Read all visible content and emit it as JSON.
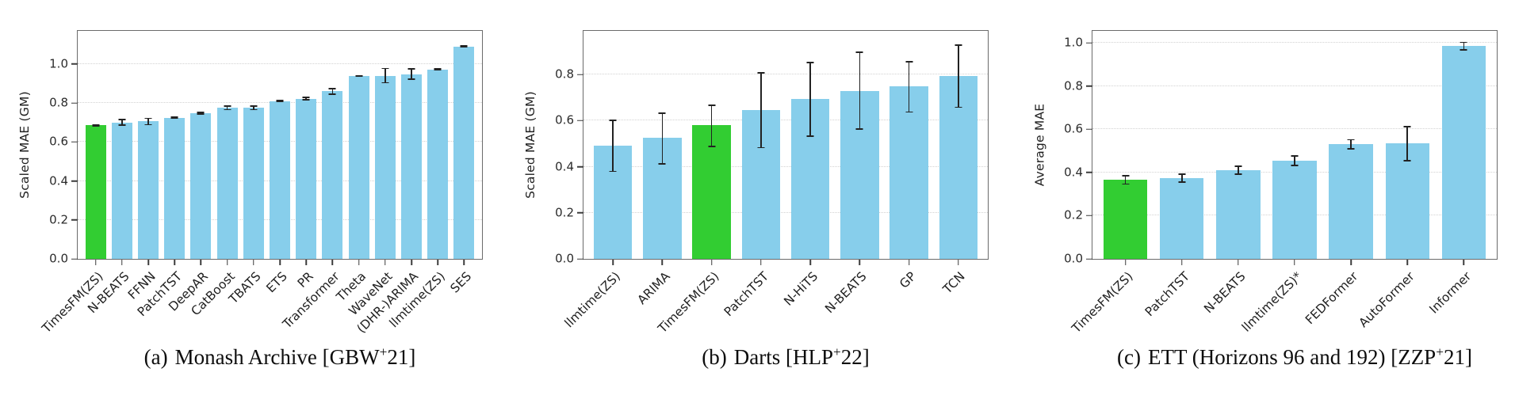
{
  "figure": {
    "background": "#ffffff",
    "bar_color": "#87CEEB",
    "highlight_color": "#32CD32",
    "error_color": "#222222",
    "grid_color": "#d2d2d2",
    "spine_color": "#6b6b6b"
  },
  "chart_data": [
    {
      "type": "bar",
      "title": "Monash Archive",
      "ylabel": "Scaled MAE (GM)",
      "xlabel": "",
      "yticks": [
        0.0,
        0.2,
        0.4,
        0.6,
        0.8,
        1.0
      ],
      "ylim": [
        0,
        1.17
      ],
      "grid": true,
      "legend_position": "none",
      "highlight_index": 0,
      "categories": [
        "TimesFM(ZS)",
        "N-BEATS",
        "FFNN",
        "PatchTST",
        "DeepAR",
        "CatBoost",
        "TBATS",
        "ETS",
        "PR",
        "Transformer",
        "Theta",
        "WaveNet",
        "(DHR-)ARIMA",
        "llmtime(ZS)",
        "SES"
      ],
      "values": [
        0.685,
        0.7,
        0.705,
        0.725,
        0.748,
        0.775,
        0.775,
        0.81,
        0.822,
        0.86,
        0.94,
        0.94,
        0.945,
        0.972,
        1.09
      ],
      "err_minus": [
        0.005,
        0.018,
        0.02,
        0.007,
        0.008,
        0.013,
        0.013,
        0.005,
        0.01,
        0.018,
        0.004,
        0.04,
        0.026,
        0.006,
        0.007
      ],
      "err_plus": [
        0.005,
        0.018,
        0.02,
        0.007,
        0.008,
        0.013,
        0.013,
        0.005,
        0.01,
        0.018,
        0.004,
        0.04,
        0.033,
        0.006,
        0.007
      ],
      "caption": {
        "tag": "(a)",
        "pre": "Monash Archive [GBW",
        "sup": "+",
        "post": "21]"
      }
    },
    {
      "type": "bar",
      "title": "Darts",
      "ylabel": "Scaled MAE (GM)",
      "xlabel": "",
      "yticks": [
        0.0,
        0.2,
        0.4,
        0.6,
        0.8
      ],
      "ylim": [
        0,
        0.99
      ],
      "grid": true,
      "legend_position": "none",
      "highlight_index": 2,
      "categories": [
        "llmtime(ZS)",
        "ARIMA",
        "TimesFM(ZS)",
        "PatchTST",
        "N-HiTS",
        "N-BEATS",
        "GP",
        "TCN"
      ],
      "values": [
        0.49,
        0.525,
        0.58,
        0.645,
        0.695,
        0.73,
        0.75,
        0.795
      ],
      "err_minus": [
        0.113,
        0.115,
        0.095,
        0.165,
        0.165,
        0.17,
        0.115,
        0.14
      ],
      "err_plus": [
        0.115,
        0.11,
        0.09,
        0.165,
        0.16,
        0.17,
        0.11,
        0.135
      ],
      "caption": {
        "tag": "(b)",
        "pre": "Darts [HLP",
        "sup": "+",
        "post": "22]"
      }
    },
    {
      "type": "bar",
      "title": "ETT (Horizons 96 and 192)",
      "ylabel": "Average MAE",
      "xlabel": "",
      "yticks": [
        0.0,
        0.2,
        0.4,
        0.6,
        0.8,
        1.0
      ],
      "ylim": [
        0,
        1.055
      ],
      "grid": true,
      "legend_position": "none",
      "highlight_index": 0,
      "categories": [
        "TimesFM(ZS)",
        "PatchTST",
        "N-BEATS",
        "llmtime(ZS)*",
        "FEDFormer",
        "AutoFormer",
        "Informer"
      ],
      "values": [
        0.365,
        0.375,
        0.41,
        0.455,
        0.53,
        0.535,
        0.985
      ],
      "err_minus": [
        0.022,
        0.022,
        0.022,
        0.025,
        0.025,
        0.085,
        0.02
      ],
      "err_plus": [
        0.022,
        0.02,
        0.022,
        0.025,
        0.025,
        0.08,
        0.02
      ],
      "caption": {
        "tag": "(c)",
        "pre": "ETT (Horizons 96 and 192) [ZZP",
        "sup": "+",
        "post": "21]"
      }
    }
  ]
}
